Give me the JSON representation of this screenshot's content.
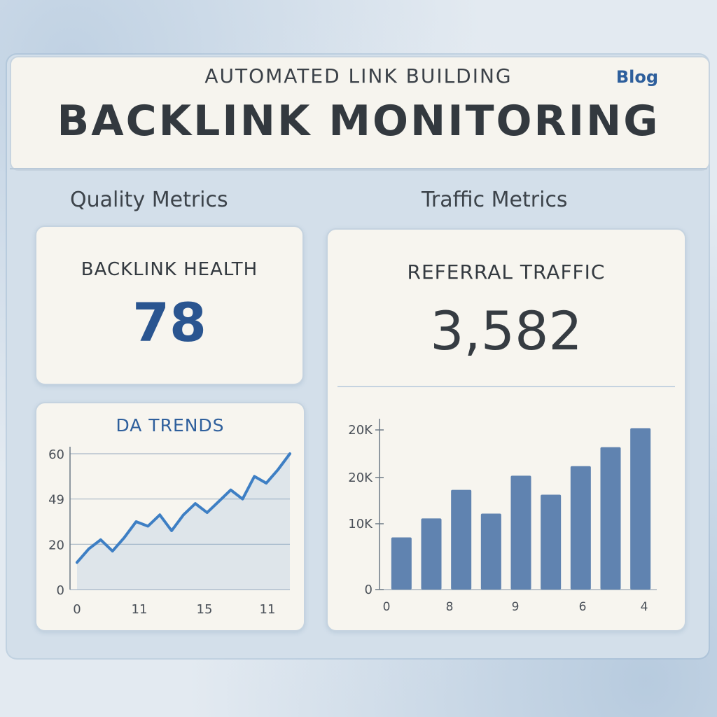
{
  "header": {
    "subtitle": "AUTOMATED LINK BUILDING",
    "title": "BACKLINK MONITORING",
    "blog_link": "Blog"
  },
  "sections": {
    "quality": "Quality Metrics",
    "traffic": "Traffic Metrics"
  },
  "backlink_health": {
    "label": "BACKLINK HEALTH",
    "value": "78"
  },
  "referral_traffic": {
    "label": "REFERRAL TRAFFIC",
    "value": "3,582"
  },
  "colors": {
    "accent": "#2e5f9c",
    "line": "#3e7fc4",
    "bar": "#4f77a8"
  },
  "chart_data": [
    {
      "type": "line",
      "title": "DA TRENDS",
      "xlabel": "",
      "ylabel": "",
      "x_tick_labels": [
        "0",
        "11",
        "15",
        "11"
      ],
      "y_tick_labels": [
        "0",
        "20",
        "49",
        "60"
      ],
      "ylim": [
        0,
        60
      ],
      "grid": true,
      "series": [
        {
          "values": [
            12,
            18,
            22,
            17,
            23,
            30,
            28,
            33,
            26,
            33,
            38,
            34,
            39,
            44,
            40,
            50,
            47,
            53,
            60
          ]
        }
      ]
    },
    {
      "type": "bar",
      "title": "",
      "xlabel": "",
      "ylabel": "",
      "x_tick_labels": [
        "0",
        "8",
        "9",
        "6",
        "4"
      ],
      "y_tick_labels": [
        "0",
        "10K",
        "20K",
        "20K"
      ],
      "ylim": [
        0,
        36
      ],
      "series": [
        {
          "values": [
            11,
            15,
            21,
            16,
            24,
            20,
            26,
            30,
            34
          ]
        }
      ]
    }
  ]
}
